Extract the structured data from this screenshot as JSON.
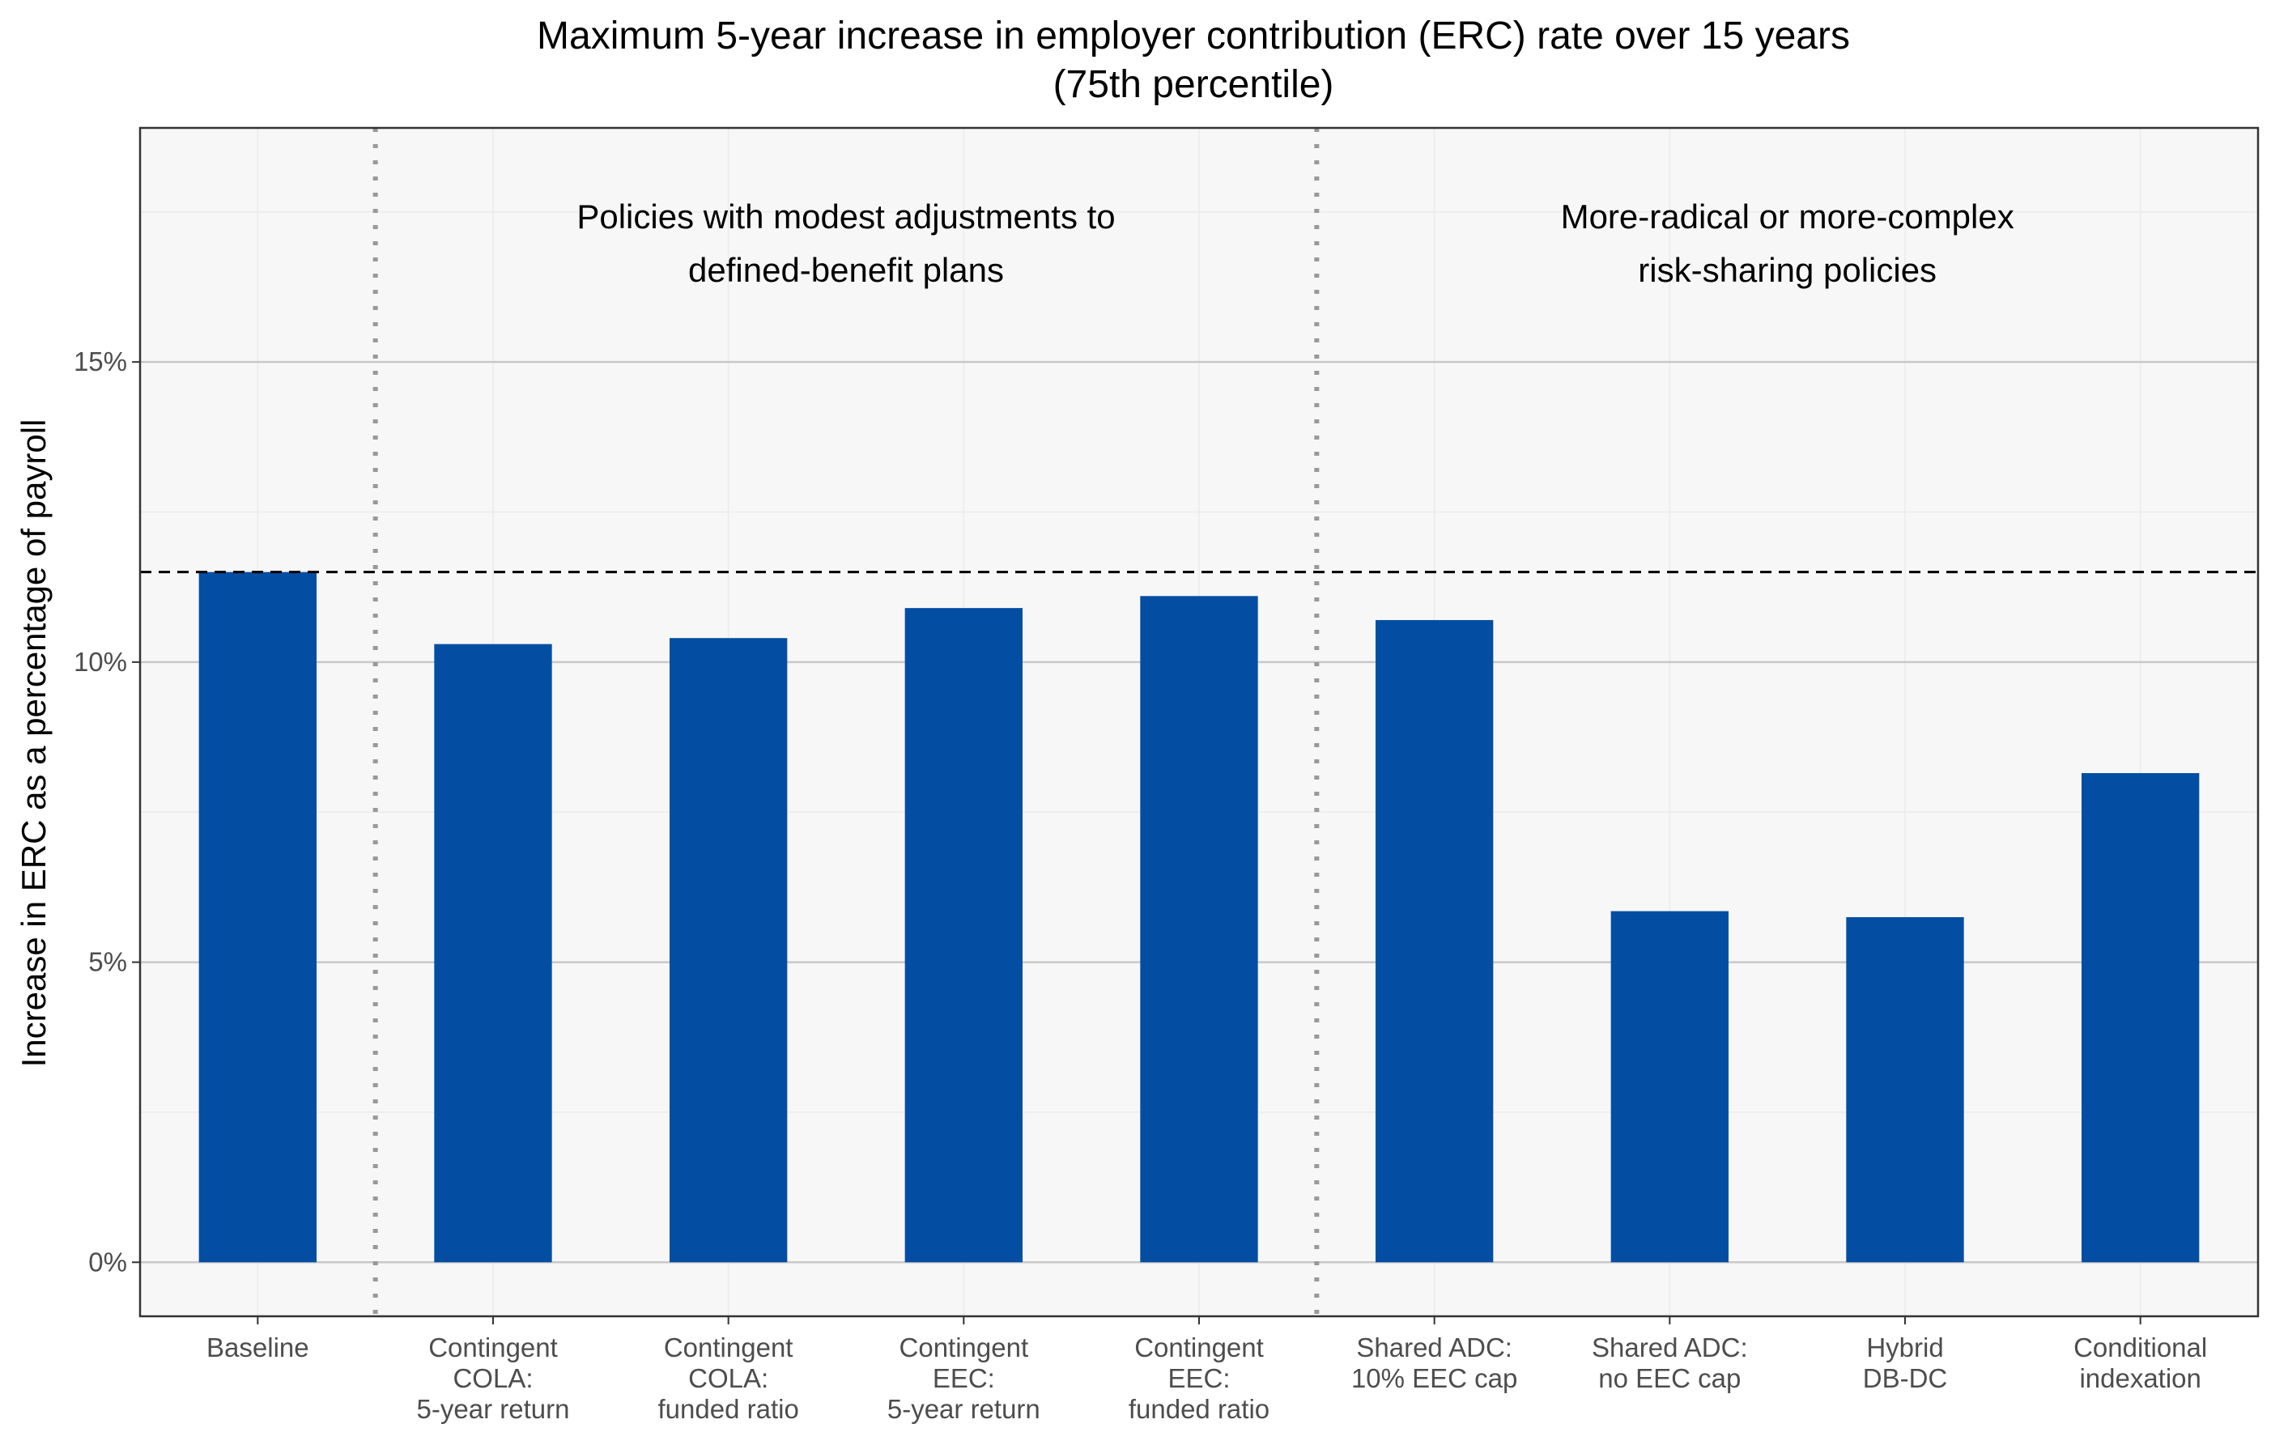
{
  "chart_data": {
    "type": "bar",
    "title": "Maximum 5-year increase in employer contribution (ERC) rate over 15 years",
    "subtitle": "(75th percentile)",
    "xlabel": "",
    "ylabel": "Increase in ERC as a percentage of payroll",
    "categories": [
      [
        "Baseline"
      ],
      [
        "Contingent",
        "COLA:",
        "5-year return"
      ],
      [
        "Contingent",
        "COLA:",
        "funded ratio"
      ],
      [
        "Contingent",
        "EEC:",
        "5-year return"
      ],
      [
        "Contingent",
        "EEC:",
        "funded ratio"
      ],
      [
        "Shared ADC:",
        "10% EEC cap"
      ],
      [
        "Shared ADC:",
        "no EEC cap"
      ],
      [
        "Hybrid",
        "DB-DC"
      ],
      [
        "Conditional",
        "indexation"
      ]
    ],
    "values": [
      11.5,
      10.3,
      10.4,
      10.9,
      11.1,
      10.7,
      5.85,
      5.75,
      8.15
    ],
    "ylim": [
      -0.9,
      18.9
    ],
    "yticks": [
      0,
      5,
      10,
      15
    ],
    "ytick_labels": [
      "0%",
      "5%",
      "10%",
      "15%"
    ],
    "reference_line": 11.5,
    "group_separators_after_index": [
      0,
      4
    ],
    "annotations": [
      {
        "lines": [
          "Policies with modest adjustments to",
          "defined-benefit plans"
        ]
      },
      {
        "lines": [
          "More-radical or more-complex",
          "risk-sharing policies"
        ]
      }
    ],
    "grid": true,
    "legend": "none",
    "colors": {
      "bar": "#034ea2",
      "panel": "#f7f7f7",
      "grid_major": "#c8c8c8",
      "grid_minor": "#ebebeb",
      "separator": "#999999"
    }
  }
}
